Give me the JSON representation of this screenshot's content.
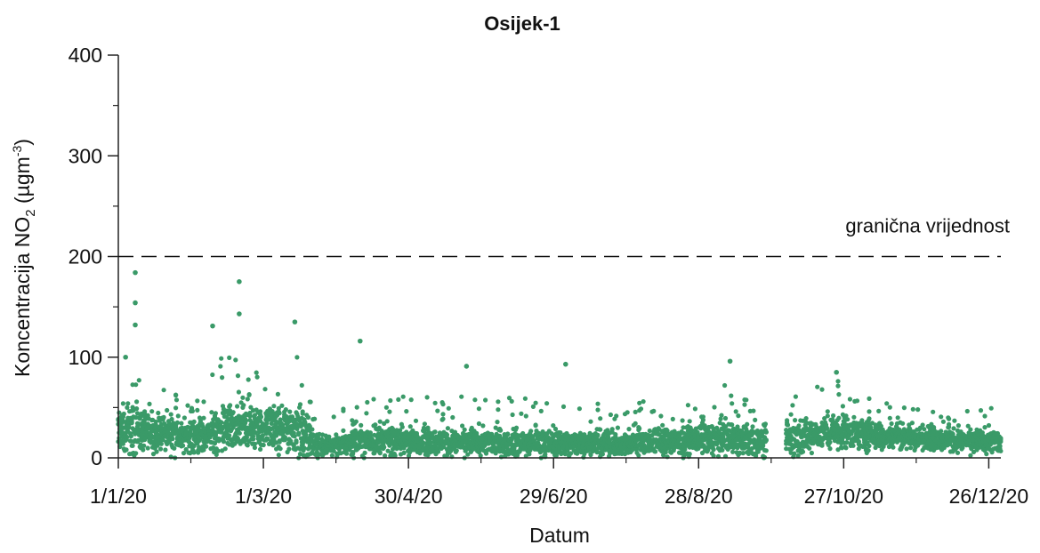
{
  "chart_data": {
    "type": "scatter",
    "title": "Osijek-1",
    "xlabel": "Datum",
    "ylabel": {
      "main": "Koncentracija NO",
      "sub": "2",
      "unit_open": " (µgm",
      "sup": "-3",
      "unit_close": ")"
    },
    "x_range": [
      "2020-01-01",
      "2020-12-31"
    ],
    "ylim": [
      0,
      400
    ],
    "y_ticks": [
      0,
      100,
      200,
      300,
      400
    ],
    "x_ticks": [
      {
        "date": "2020-01-01",
        "label": "1/1/20"
      },
      {
        "date": "2020-03-01",
        "label": "1/3/20"
      },
      {
        "date": "2020-04-30",
        "label": "30/4/20"
      },
      {
        "date": "2020-06-29",
        "label": "29/6/20"
      },
      {
        "date": "2020-08-28",
        "label": "28/8/20"
      },
      {
        "date": "2020-10-27",
        "label": "27/10/20"
      },
      {
        "date": "2020-12-26",
        "label": "26/12/20"
      }
    ],
    "grid": false,
    "legend": "none",
    "limit_line": {
      "value": 200,
      "label": "granična vrijednost",
      "style": "dashed",
      "color": "#000000"
    },
    "marker_color": "#3a9a68",
    "gap": [
      "2020-09-25",
      "2020-10-03"
    ],
    "notable_points": [
      {
        "date": "2020-01-08",
        "value": 184
      },
      {
        "date": "2020-01-08",
        "value": 154
      },
      {
        "date": "2020-01-04",
        "value": 100
      },
      {
        "date": "2020-01-08",
        "value": 132
      },
      {
        "date": "2020-02-09",
        "value": 131
      },
      {
        "date": "2020-02-20",
        "value": 175
      },
      {
        "date": "2020-02-20",
        "value": 143
      },
      {
        "date": "2020-03-14",
        "value": 135
      },
      {
        "date": "2020-04-10",
        "value": 116
      },
      {
        "date": "2020-05-24",
        "value": 91
      },
      {
        "date": "2020-07-04",
        "value": 93
      },
      {
        "date": "2020-09-10",
        "value": 96
      },
      {
        "date": "2020-10-24",
        "value": 85
      }
    ],
    "series_envelope": [
      {
        "date": "2020-01-01",
        "median": 28,
        "spread": 24,
        "peak": 70
      },
      {
        "date": "2020-01-15",
        "median": 26,
        "spread": 20,
        "peak": 85
      },
      {
        "date": "2020-02-01",
        "median": 20,
        "spread": 14,
        "peak": 50
      },
      {
        "date": "2020-02-15",
        "median": 30,
        "spread": 22,
        "peak": 110
      },
      {
        "date": "2020-03-01",
        "median": 28,
        "spread": 20,
        "peak": 85
      },
      {
        "date": "2020-03-15",
        "median": 30,
        "spread": 24,
        "peak": 110
      },
      {
        "date": "2020-03-25",
        "median": 12,
        "spread": 10,
        "peak": 40
      },
      {
        "date": "2020-04-15",
        "median": 18,
        "spread": 14,
        "peak": 60
      },
      {
        "date": "2020-05-15",
        "median": 16,
        "spread": 12,
        "peak": 65
      },
      {
        "date": "2020-06-15",
        "median": 15,
        "spread": 12,
        "peak": 60
      },
      {
        "date": "2020-07-15",
        "median": 14,
        "spread": 11,
        "peak": 55
      },
      {
        "date": "2020-08-15",
        "median": 16,
        "spread": 13,
        "peak": 60
      },
      {
        "date": "2020-09-10",
        "median": 20,
        "spread": 16,
        "peak": 75
      },
      {
        "date": "2020-09-24",
        "median": 15,
        "spread": 14,
        "peak": 45
      },
      {
        "date": "2020-10-05",
        "median": 20,
        "spread": 15,
        "peak": 60
      },
      {
        "date": "2020-10-25",
        "median": 26,
        "spread": 18,
        "peak": 80
      },
      {
        "date": "2020-11-15",
        "median": 22,
        "spread": 12,
        "peak": 55
      },
      {
        "date": "2020-12-10",
        "median": 18,
        "spread": 10,
        "peak": 45
      },
      {
        "date": "2020-12-31",
        "median": 16,
        "spread": 12,
        "peak": 55
      }
    ]
  }
}
